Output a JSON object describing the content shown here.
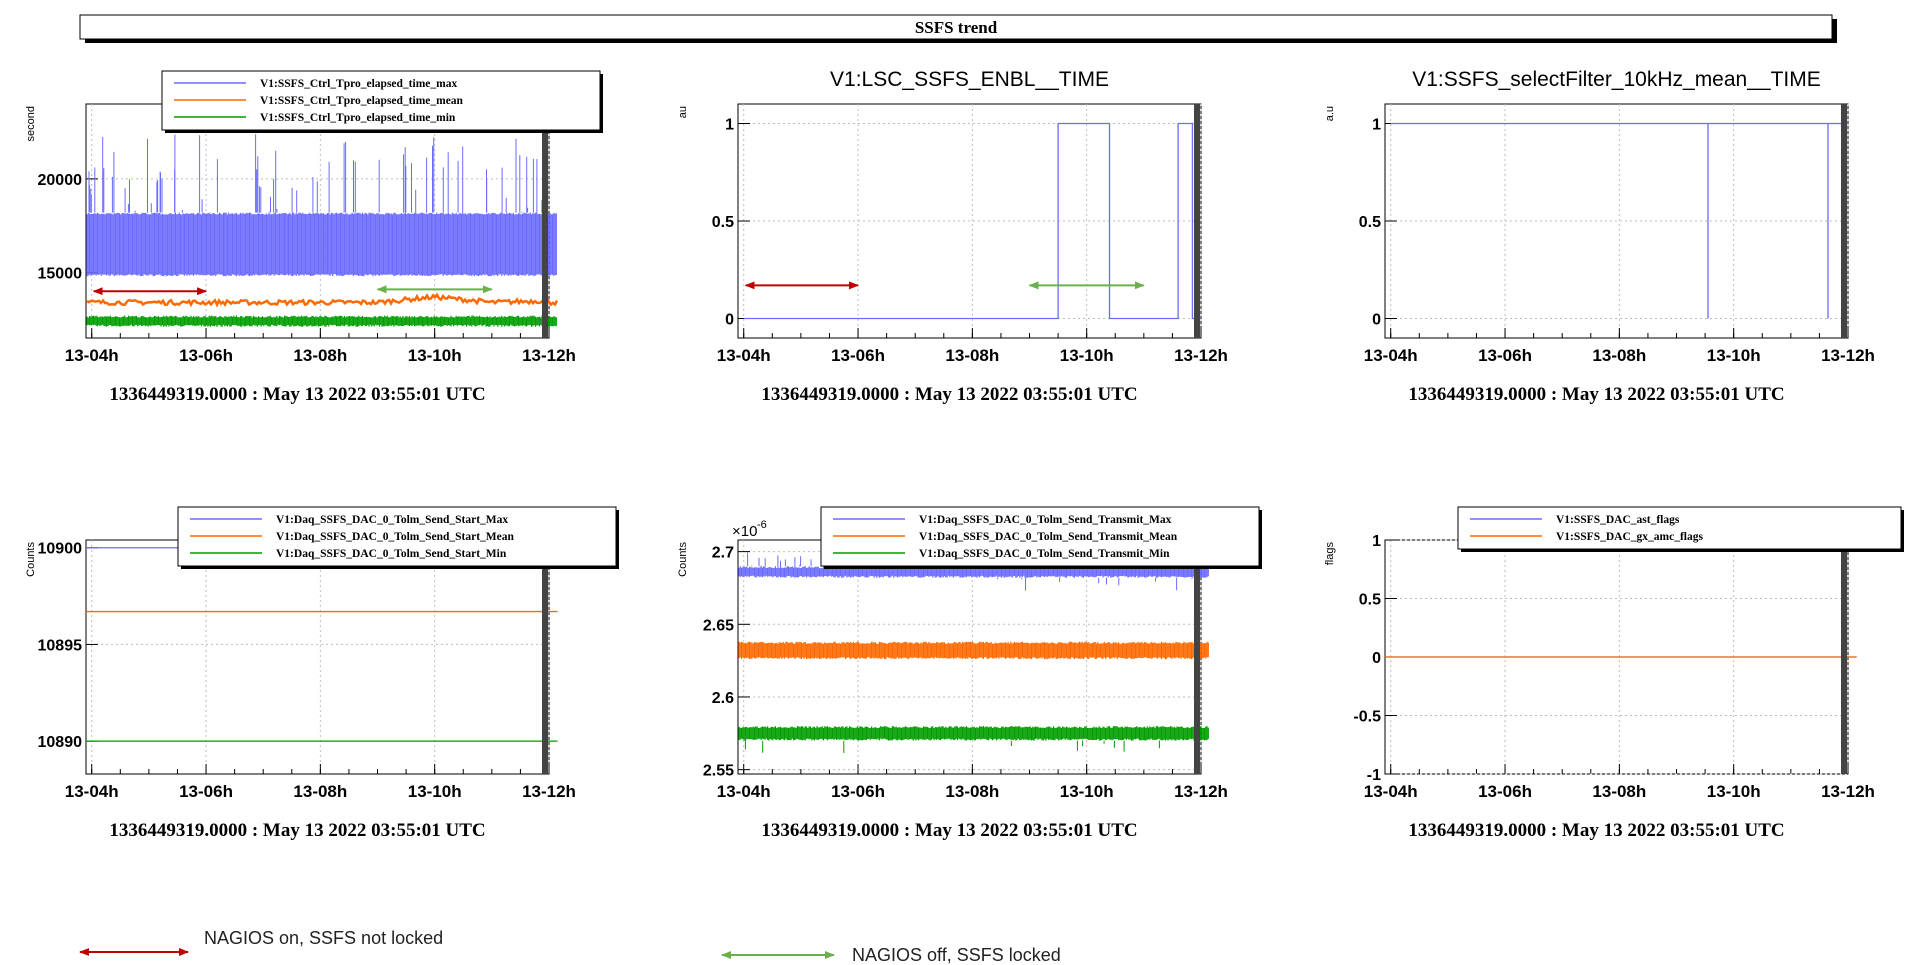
{
  "title": "SSFS trend",
  "timestamp": "1336449319.0000 : May 13 2022 03:55:01 UTC",
  "colors": {
    "max": "#6b6bff",
    "mean": "#ff6a00",
    "min": "#009e00",
    "red_arrow": "#c00000",
    "green_arrow": "#6ab04c"
  },
  "annotations": {
    "red": "NAGIOS on, SSFS not locked",
    "green": "NAGIOS off, SSFS  locked",
    "red_span": [
      "13-04h",
      "13-06h"
    ],
    "green_span": [
      "13-09h",
      "13-11h"
    ]
  },
  "chart_data": [
    {
      "type": "line",
      "title": "",
      "ylabel": "second",
      "xlabel": "",
      "x_ticks": [
        "13-04h",
        "13-06h",
        "13-08h",
        "13-10h",
        "13-12h"
      ],
      "y_ticks": [
        "15000",
        "20000"
      ],
      "ylim": [
        11500,
        24000
      ],
      "legend": [
        "V1:SSFS_Ctrl_Tpro_elapsed_time_max",
        "V1:SSFS_Ctrl_Tpro_elapsed_time_mean",
        "V1:SSFS_Ctrl_Tpro_elapsed_time_min"
      ],
      "series": [
        {
          "name": "V1:SSFS_Ctrl_Tpro_elapsed_time_max",
          "band": [
            14800,
            18200
          ],
          "spike_max": 22500
        },
        {
          "name": "V1:SSFS_Ctrl_Tpro_elapsed_time_mean",
          "x": [
            "13-04h",
            "13-09h",
            "13-10h",
            "13-11h",
            "13-12h"
          ],
          "values": [
            13400,
            13400,
            13700,
            13400,
            13500
          ]
        },
        {
          "name": "V1:SSFS_Ctrl_Tpro_elapsed_time_min",
          "band": [
            12100,
            12700
          ]
        }
      ]
    },
    {
      "type": "line",
      "title": "V1:LSC_SSFS_ENBL__TIME",
      "ylabel": "au",
      "xlabel": "",
      "x_ticks": [
        "13-04h",
        "13-06h",
        "13-08h",
        "13-10h",
        "13-12h"
      ],
      "y_ticks": [
        "0",
        "0.5",
        "1"
      ],
      "ylim": [
        -0.1,
        1.1
      ],
      "series": [
        {
          "x": [
            "13-04h",
            "13-09.5h",
            "13-09.5h",
            "13-10.4h",
            "13-10.4h",
            "13-11.6h",
            "13-11.6h",
            "13-11.85h",
            "13-11.85h",
            "13-12h"
          ],
          "values": [
            0,
            0,
            1,
            1,
            0,
            0,
            1,
            1,
            0,
            0
          ]
        }
      ]
    },
    {
      "type": "line",
      "title": "V1:SSFS_selectFilter_10kHz_mean__TIME",
      "ylabel": "a.u",
      "xlabel": "",
      "x_ticks": [
        "13-04h",
        "13-06h",
        "13-08h",
        "13-10h",
        "13-12h"
      ],
      "y_ticks": [
        "0",
        "0.5",
        "1"
      ],
      "ylim": [
        -0.1,
        1.1
      ],
      "series": [
        {
          "x": [
            "13-04h",
            "13-09.55h",
            "13-09.55h",
            "13-09.55h",
            "13-11.65h",
            "13-11.65h",
            "13-11.65h",
            "13-12h"
          ],
          "values": [
            1,
            1,
            0,
            1,
            1,
            0,
            1,
            1
          ]
        }
      ]
    },
    {
      "type": "line",
      "title": "",
      "ylabel": "Counts",
      "xlabel": "",
      "x_ticks": [
        "13-04h",
        "13-06h",
        "13-08h",
        "13-10h",
        "13-12h"
      ],
      "y_ticks": [
        "10890",
        "10895",
        "10900"
      ],
      "ylim": [
        10888.3,
        10900.4
      ],
      "legend": [
        "V1:Daq_SSFS_DAC_0_Tolm_Send_Start_Max",
        "V1:Daq_SSFS_DAC_0_Tolm_Send_Start_Mean",
        "V1:Daq_SSFS_DAC_0_Tolm_Send_Start_Min"
      ],
      "series": [
        {
          "name": "V1:Daq_SSFS_DAC_0_Tolm_Send_Start_Max",
          "values": [
            10900,
            10900
          ]
        },
        {
          "name": "V1:Daq_SSFS_DAC_0_Tolm_Send_Start_Mean",
          "values": [
            10896.7,
            10896.7
          ]
        },
        {
          "name": "V1:Daq_SSFS_DAC_0_Tolm_Send_Start_Min",
          "values": [
            10890,
            10890
          ]
        }
      ]
    },
    {
      "type": "line",
      "title": "",
      "ylabel": "Counts",
      "xlabel": "",
      "y_multiplier": "×10",
      "y_multiplier_exp": "-6",
      "x_ticks": [
        "13-04h",
        "13-06h",
        "13-08h",
        "13-10h",
        "13-12h"
      ],
      "y_ticks": [
        "2.55",
        "2.6",
        "2.65",
        "2.7"
      ],
      "ylim": [
        2.547,
        2.708
      ],
      "legend": [
        "V1:Daq_SSFS_DAC_0_Tolm_Send_Transmit_Max",
        "V1:Daq_SSFS_DAC_0_Tolm_Send_Transmit_Mean",
        "V1:Daq_SSFS_DAC_0_Tolm_Send_Transmit_Min"
      ],
      "series": [
        {
          "name": "V1:Daq_SSFS_DAC_0_Tolm_Send_Transmit_Max",
          "band": [
            2.682,
            2.69
          ],
          "spike_max": 2.7,
          "spike_min": 2.673
        },
        {
          "name": "V1:Daq_SSFS_DAC_0_Tolm_Send_Transmit_Mean",
          "band": [
            2.626,
            2.638
          ]
        },
        {
          "name": "V1:Daq_SSFS_DAC_0_Tolm_Send_Transmit_Min",
          "band": [
            2.57,
            2.58
          ],
          "spike_min": 2.561
        }
      ]
    },
    {
      "type": "line",
      "title": "",
      "ylabel": "flags",
      "xlabel": "",
      "x_ticks": [
        "13-04h",
        "13-06h",
        "13-08h",
        "13-10h",
        "13-12h"
      ],
      "y_ticks": [
        "-1",
        "-0.5",
        "0",
        "0.5",
        "1"
      ],
      "ylim": [
        -1,
        1
      ],
      "legend": [
        "V1:SSFS_DAC_ast_flags",
        "V1:SSFS_DAC_gx_amc_flags"
      ],
      "series": [
        {
          "name": "V1:SSFS_DAC_ast_flags",
          "values": [
            0,
            0
          ]
        },
        {
          "name": "V1:SSFS_DAC_gx_amc_flags",
          "values": [
            0,
            0
          ]
        }
      ]
    }
  ]
}
